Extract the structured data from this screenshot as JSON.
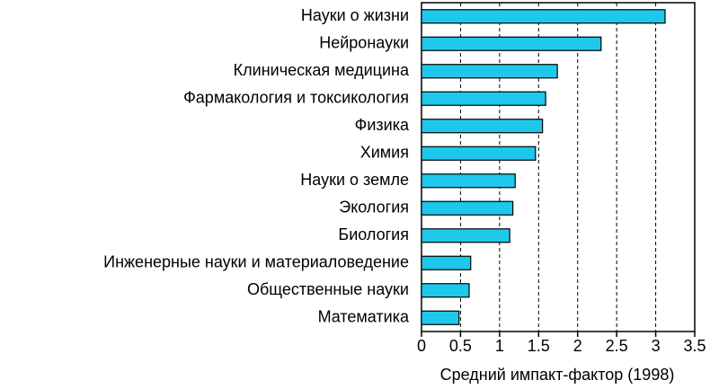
{
  "chart_data": {
    "type": "barh",
    "x_label": "Средний импакт-фактор (1998)",
    "categories": [
      "Науки о жизни",
      "Нейронауки",
      "Клиническая медицина",
      "Фармакология и токсикология",
      "Физика",
      "Химия",
      "Науки о земле",
      "Экология",
      "Биология",
      "Инженерные науки и материаловедение",
      "Общественные науки",
      "Математика"
    ],
    "values": [
      3.12,
      2.3,
      1.74,
      1.59,
      1.55,
      1.46,
      1.2,
      1.17,
      1.13,
      0.63,
      0.61,
      0.48
    ],
    "color": "#1ec8ea",
    "xlim": [
      0,
      3.5
    ],
    "xticks": [
      0,
      0.5,
      1,
      1.5,
      2,
      2.5,
      3,
      3.5
    ],
    "grid": true
  }
}
